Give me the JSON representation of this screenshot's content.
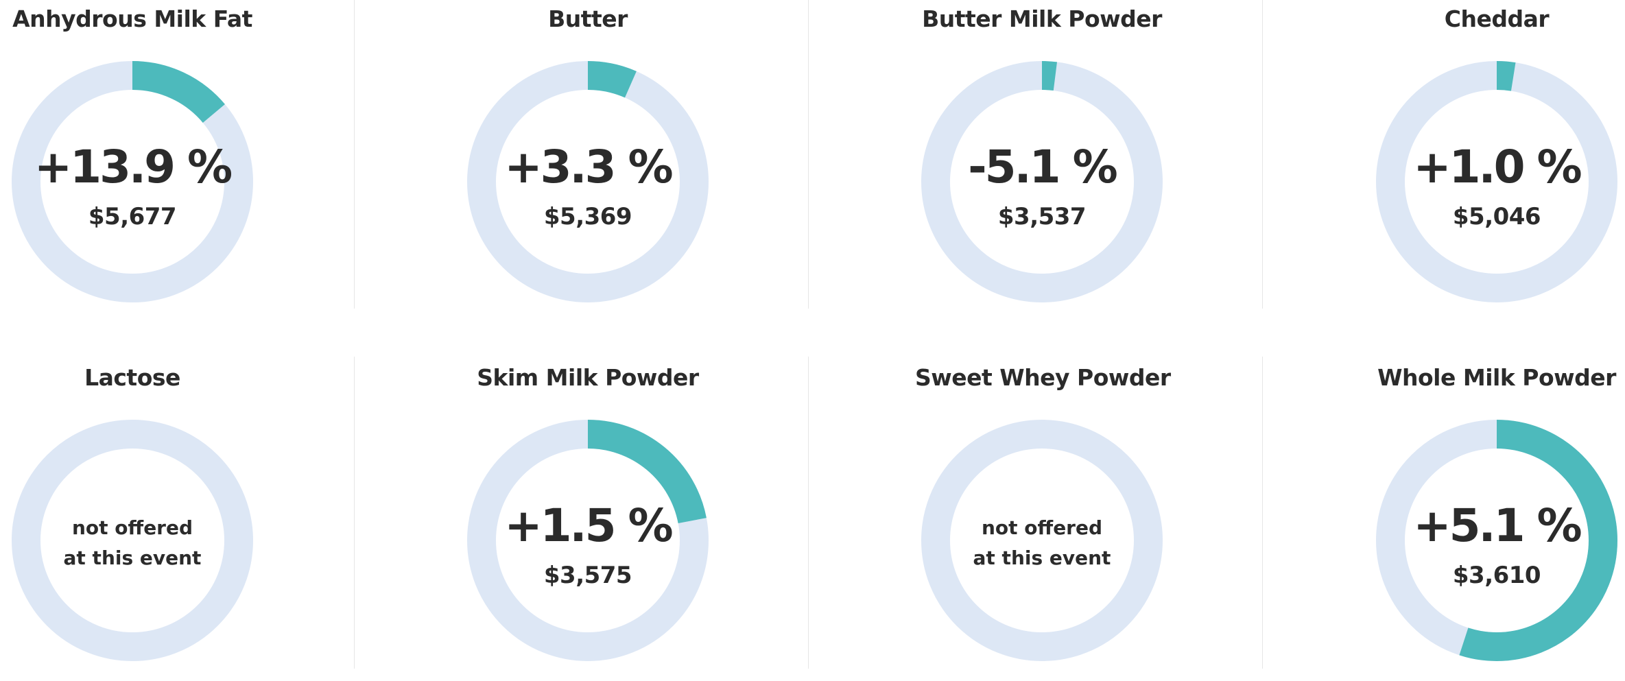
{
  "colors": {
    "ring_background": "#dde7f5",
    "ring_fill": "#4dbabc",
    "text": "#2b2b2b",
    "divider": "#e6e6e6"
  },
  "chart_data": [
    {
      "type": "pie",
      "title": "Anhydrous Milk Fat",
      "change": "+13.9 %",
      "price": "$5,677",
      "offered": true,
      "fill_fraction": 0.139
    },
    {
      "type": "pie",
      "title": "Butter",
      "change": "+3.3 %",
      "price": "$5,369",
      "offered": true,
      "fill_fraction": 0.066
    },
    {
      "type": "pie",
      "title": "Butter Milk Powder",
      "change": "-5.1 %",
      "price": "$3,537",
      "offered": true,
      "fill_fraction": 0.02
    },
    {
      "type": "pie",
      "title": "Cheddar",
      "change": "+1.0 %",
      "price": "$5,046",
      "offered": true,
      "fill_fraction": 0.025
    },
    {
      "type": "pie",
      "title": "Lactose",
      "offered": false,
      "not_offered_text": [
        "not offered",
        "at this event"
      ]
    },
    {
      "type": "pie",
      "title": "Skim Milk Powder",
      "change": "+1.5 %",
      "price": "$3,575",
      "offered": true,
      "fill_fraction": 0.22
    },
    {
      "type": "pie",
      "title": "Sweet Whey Powder",
      "offered": false,
      "not_offered_text": [
        "not offered",
        "at this event"
      ]
    },
    {
      "type": "pie",
      "title": "Whole Milk Powder",
      "change": "+5.1 %",
      "price": "$3,610",
      "offered": true,
      "fill_fraction": 0.55
    }
  ]
}
